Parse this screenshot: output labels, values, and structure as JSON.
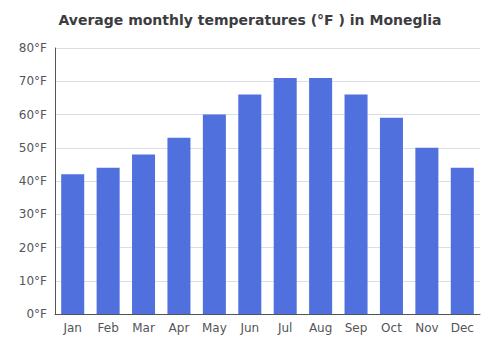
{
  "chart_data": {
    "type": "bar",
    "title": "Average monthly temperatures (°F ) in Moneglia",
    "categories": [
      "Jan",
      "Feb",
      "Mar",
      "Apr",
      "May",
      "Jun",
      "Jul",
      "Aug",
      "Sep",
      "Oct",
      "Nov",
      "Dec"
    ],
    "values": [
      42,
      44,
      48,
      53,
      60,
      66,
      71,
      71,
      66,
      59,
      50,
      44
    ],
    "ylim": [
      0,
      80
    ],
    "yticks": [
      {
        "value": 0,
        "label": "0°F"
      },
      {
        "value": 10,
        "label": "10°F"
      },
      {
        "value": 20,
        "label": "20°F"
      },
      {
        "value": 30,
        "label": "30°F"
      },
      {
        "value": 40,
        "label": "40°F"
      },
      {
        "value": 50,
        "label": "50°F"
      },
      {
        "value": 60,
        "label": "60°F"
      },
      {
        "value": 70,
        "label": "70°F"
      },
      {
        "value": 80,
        "label": "80°F"
      }
    ],
    "grid": true
  }
}
